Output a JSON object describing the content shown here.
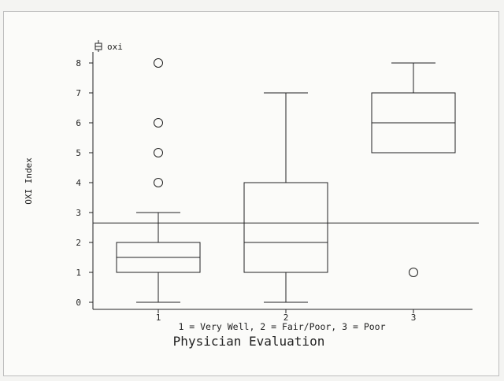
{
  "chart_data": {
    "type": "box",
    "legend": "oxi",
    "ylabel": "OXI Index",
    "xlabel": "Physician Evaluation",
    "xsublabel": "1 = Very Well, 2 = Fair/Poor, 3 = Poor",
    "ylim": [
      0,
      8
    ],
    "yticks": [
      "0",
      "1",
      "2",
      "3",
      "4",
      "5",
      "6",
      "7",
      "8"
    ],
    "categories": [
      "1",
      "2",
      "3"
    ],
    "reference_line": 2.65,
    "boxes": [
      {
        "category": "1",
        "min": 0,
        "q1": 1,
        "median": 1.5,
        "q3": 2,
        "max": 3,
        "outliers": [
          4,
          5,
          6,
          8
        ]
      },
      {
        "category": "2",
        "min": 0,
        "q1": 1,
        "median": 2,
        "q3": 4,
        "max": 7,
        "outliers": []
      },
      {
        "category": "3",
        "min": 5,
        "q1": 5,
        "median": 6,
        "q3": 7,
        "max": 8,
        "outliers": [
          1
        ]
      }
    ]
  }
}
